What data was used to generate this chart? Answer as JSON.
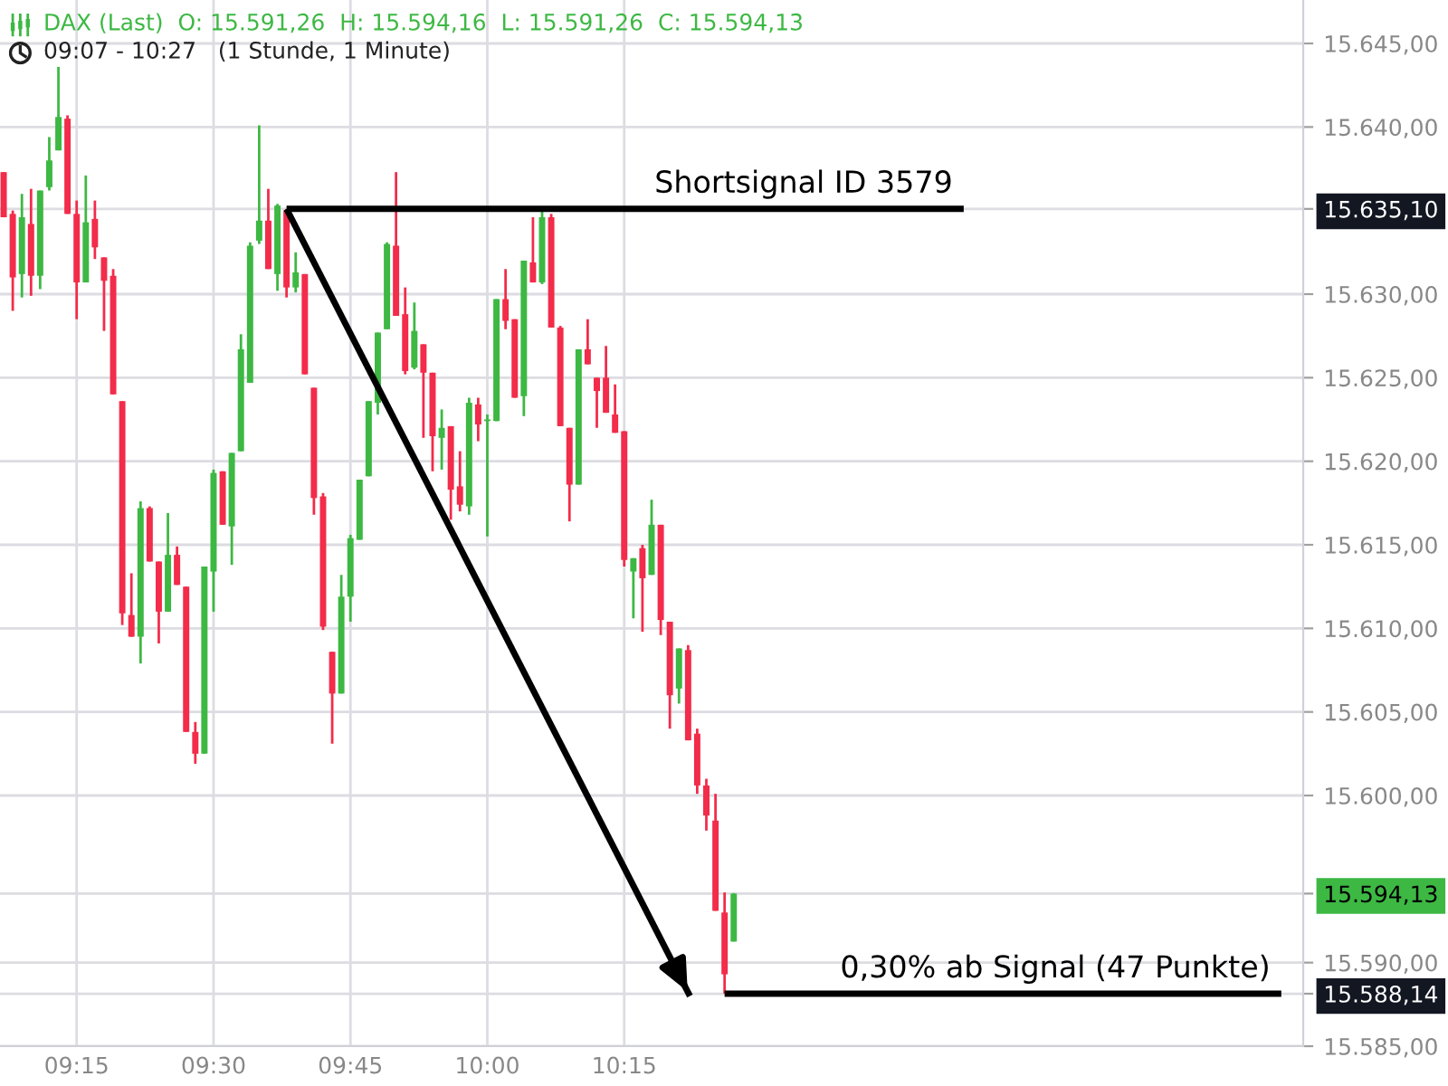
{
  "chart_data": {
    "type": "candlestick",
    "title": "DAX (Last)  O: 15.591,26  H: 15.594,16  L: 15.591,26  C: 15.594,13",
    "subtitle": "09:07 - 10:27   (1 Stunde, 1 Minute)",
    "x": [
      9.1167,
      9.1333,
      9.15,
      9.1667,
      9.1833,
      9.2,
      9.2167,
      9.2333,
      9.25,
      9.2667,
      9.2833,
      9.3,
      9.3167,
      9.3333,
      9.35,
      9.3667,
      9.3833,
      9.4,
      9.4167,
      9.4333,
      9.45,
      9.4667,
      9.4833,
      9.5,
      9.5167,
      9.5333,
      9.55,
      9.5667,
      9.5833,
      9.6,
      9.6167,
      9.6333,
      9.65,
      9.6667,
      9.6833,
      9.7,
      9.7167,
      9.7333,
      9.75,
      9.7667,
      9.7833,
      9.8,
      9.8167,
      9.8333,
      9.85,
      9.8667,
      9.8833,
      9.9,
      9.9167,
      9.9333,
      9.95,
      9.9667,
      9.9833,
      10.0,
      10.0167,
      10.0333,
      10.05,
      10.0667,
      10.0833,
      10.1,
      10.1167,
      10.1333,
      10.15,
      10.1667,
      10.1833,
      10.2,
      10.2167,
      10.2333,
      10.25,
      10.2667,
      10.2833,
      10.3,
      10.3167,
      10.3333,
      10.35,
      10.3667,
      10.3833,
      10.4,
      10.4167,
      10.4333,
      10.45
    ],
    "ohlc": [
      [
        15637.3,
        15637.3,
        15634.6,
        15634.6
      ],
      [
        15634.8,
        15635.0,
        15629.0,
        15631.0
      ],
      [
        15631.2,
        15636.0,
        15629.8,
        15634.6
      ],
      [
        15634.2,
        15636.3,
        15629.9,
        15631.1
      ],
      [
        15631.1,
        15636.2,
        15630.3,
        15636.2
      ],
      [
        15636.4,
        15639.4,
        15636.2,
        15638.0
      ],
      [
        15638.6,
        15643.6,
        15638.6,
        15640.6
      ],
      [
        15640.5,
        15640.7,
        15634.8,
        15634.8
      ],
      [
        15634.8,
        15635.6,
        15628.5,
        15630.7
      ],
      [
        15630.7,
        15637.1,
        15630.7,
        15634.3
      ],
      [
        15634.5,
        15635.6,
        15632.1,
        15632.8
      ],
      [
        15632.2,
        15632.2,
        15627.8,
        15630.8
      ],
      [
        15631.1,
        15631.5,
        15624.0,
        15624.0
      ],
      [
        15623.6,
        15623.6,
        15610.2,
        15610.9
      ],
      [
        15610.8,
        15613.3,
        15609.5,
        15609.5
      ],
      [
        15609.5,
        15617.6,
        15607.9,
        15617.2
      ],
      [
        15617.2,
        15617.3,
        15614.0,
        15614.0
      ],
      [
        15614.0,
        15614.0,
        15609.1,
        15611.0
      ],
      [
        15611.0,
        15616.9,
        15611.0,
        15614.4
      ],
      [
        15614.4,
        15614.9,
        15612.6,
        15612.6
      ],
      [
        15612.5,
        15612.5,
        15603.8,
        15603.8
      ],
      [
        15603.8,
        15604.4,
        15601.9,
        15602.5
      ],
      [
        15602.5,
        15613.7,
        15602.5,
        15613.7
      ],
      [
        15613.4,
        15619.5,
        15611.0,
        15619.3
      ],
      [
        15619.4,
        15619.4,
        15616.2,
        15616.2
      ],
      [
        15616.1,
        15620.5,
        15613.8,
        15620.5
      ],
      [
        15620.6,
        15627.6,
        15620.6,
        15626.7
      ],
      [
        15624.7,
        15633.1,
        15624.7,
        15632.9
      ],
      [
        15633.2,
        15640.1,
        15633.0,
        15634.4
      ],
      [
        15634.4,
        15636.3,
        15631.5,
        15631.5
      ],
      [
        15631.2,
        15635.4,
        15630.2,
        15635.3
      ],
      [
        15635.0,
        15635.1,
        15629.8,
        15630.4
      ],
      [
        15630.4,
        15632.5,
        15630.1,
        15631.3
      ],
      [
        15631.2,
        15631.2,
        15625.2,
        15625.2
      ],
      [
        15624.4,
        15624.4,
        15616.8,
        15617.8
      ],
      [
        15617.9,
        15618.1,
        15609.9,
        15610.1
      ],
      [
        15608.6,
        15608.6,
        15603.1,
        15606.1
      ],
      [
        15606.1,
        15613.2,
        15606.1,
        15611.9
      ],
      [
        15611.9,
        15615.6,
        15610.4,
        15615.4
      ],
      [
        15615.3,
        15618.9,
        15615.3,
        15618.9
      ],
      [
        15619.1,
        15623.6,
        15619.1,
        15623.6
      ],
      [
        15623.5,
        15627.7,
        15622.8,
        15627.7
      ],
      [
        15627.9,
        15633.1,
        15627.9,
        15633.0
      ],
      [
        15632.9,
        15637.3,
        15628.7,
        15628.7
      ],
      [
        15628.8,
        15630.4,
        15625.2,
        15625.4
      ],
      [
        15625.6,
        15629.5,
        15625.5,
        15627.8
      ],
      [
        15627.0,
        15627.0,
        15621.4,
        15625.3
      ],
      [
        15625.3,
        15625.3,
        15619.4,
        15621.5
      ],
      [
        15621.4,
        15623.1,
        15619.5,
        15622.0
      ],
      [
        15622.1,
        15622.1,
        15616.5,
        15618.3
      ],
      [
        15618.5,
        15620.6,
        15617.0,
        15617.4
      ],
      [
        15617.3,
        15623.8,
        15616.8,
        15623.5
      ],
      [
        15623.4,
        15623.8,
        15621.2,
        15622.2
      ],
      [
        15622.4,
        15622.8,
        15615.5,
        15622.5
      ],
      [
        15622.4,
        15629.7,
        15622.4,
        15629.7
      ],
      [
        15629.7,
        15631.5,
        15627.9,
        15628.4
      ],
      [
        15628.5,
        15628.5,
        15623.8,
        15623.8
      ],
      [
        15623.9,
        15632.0,
        15622.7,
        15632.0
      ],
      [
        15631.9,
        15634.6,
        15630.7,
        15630.7
      ],
      [
        15630.7,
        15635.0,
        15630.6,
        15634.6
      ],
      [
        15634.6,
        15634.8,
        15628.0,
        15628.0
      ],
      [
        15628.0,
        15628.1,
        15622.1,
        15622.1
      ],
      [
        15622.0,
        15622.0,
        15616.4,
        15618.6
      ],
      [
        15618.6,
        15626.7,
        15618.6,
        15626.7
      ],
      [
        15626.7,
        15628.5,
        15625.8,
        15625.8
      ],
      [
        15625.0,
        15625.0,
        15622.0,
        15624.2
      ],
      [
        15625.0,
        15626.9,
        15622.9,
        15622.9
      ],
      [
        15622.8,
        15624.6,
        15621.7,
        15621.7
      ],
      [
        15621.8,
        15621.8,
        15613.7,
        15614.1
      ],
      [
        15613.4,
        15614.2,
        15610.6,
        15614.2
      ],
      [
        15614.8,
        15615.0,
        15609.8,
        15613.0
      ],
      [
        15613.2,
        15617.7,
        15613.2,
        15616.2
      ],
      [
        15616.2,
        15616.2,
        15609.6,
        15610.5
      ],
      [
        15610.4,
        15610.4,
        15604.0,
        15606.0
      ],
      [
        15606.4,
        15608.8,
        15605.5,
        15608.8
      ],
      [
        15608.7,
        15609.0,
        15603.3,
        15603.3
      ],
      [
        15603.7,
        15604.0,
        15600.1,
        15600.6
      ],
      [
        15600.6,
        15601.0,
        15597.9,
        15598.8
      ],
      [
        15598.5,
        15600.1,
        15593.1,
        15593.1
      ],
      [
        15593.0,
        15594.2,
        15588.14,
        15589.3
      ],
      [
        15591.26,
        15594.16,
        15591.26,
        15594.13
      ]
    ],
    "colors": [
      "#f22c4a",
      "#f22c4a",
      "#3db843",
      "#f22c4a",
      "#3db843",
      "#3db843",
      "#3db843",
      "#f22c4a",
      "#f22c4a",
      "#3db843",
      "#f22c4a",
      "#f22c4a",
      "#f22c4a",
      "#f22c4a",
      "#f22c4a",
      "#3db843",
      "#f22c4a",
      "#f22c4a",
      "#3db843",
      "#f22c4a",
      "#f22c4a",
      "#f22c4a",
      "#3db843",
      "#3db843",
      "#f22c4a",
      "#3db843",
      "#3db843",
      "#3db843",
      "#3db843",
      "#f22c4a",
      "#3db843",
      "#f22c4a",
      "#3db843",
      "#f22c4a",
      "#f22c4a",
      "#f22c4a",
      "#f22c4a",
      "#3db843",
      "#3db843",
      "#3db843",
      "#3db843",
      "#3db843",
      "#3db843",
      "#f22c4a",
      "#f22c4a",
      "#3db843",
      "#f22c4a",
      "#f22c4a",
      "#3db843",
      "#f22c4a",
      "#f22c4a",
      "#3db843",
      "#f22c4a",
      "#3db843",
      "#3db843",
      "#f22c4a",
      "#f22c4a",
      "#3db843",
      "#f22c4a",
      "#3db843",
      "#f22c4a",
      "#f22c4a",
      "#f22c4a",
      "#3db843",
      "#f22c4a",
      "#f22c4a",
      "#f22c4a",
      "#f22c4a",
      "#f22c4a",
      "#3db843",
      "#f22c4a",
      "#3db843",
      "#f22c4a",
      "#f22c4a",
      "#3db843",
      "#f22c4a",
      "#f22c4a",
      "#f22c4a",
      "#f22c4a",
      "#f22c4a",
      "#3db843"
    ],
    "series": [
      {
        "type": "line",
        "x": [
          9.6333,
          10.87
        ],
        "values": [
          15635.1,
          15635.1
        ],
        "color": "#000000"
      },
      {
        "type": "line",
        "x": [
          10.4333,
          11.45
        ],
        "values": [
          15588.14,
          15588.14
        ],
        "color": "#000000"
      },
      {
        "type": "line",
        "x": [
          9.6333,
          10.37
        ],
        "values": [
          15635.1,
          15588.0
        ],
        "color": "#000000"
      }
    ],
    "annotations": [
      {
        "text": "Shortsignal ID 3579",
        "x": 10.85,
        "y": 15635.1
      },
      {
        "text": "0,30% ab Signal (47 Punkte)",
        "x": 11.43,
        "y": 15588.14
      }
    ],
    "xlim": [
      9.11,
      11.49
    ],
    "ylim": [
      15585.0,
      15647.6
    ],
    "xticks": [
      {
        "value": 9.25,
        "label": "09:15"
      },
      {
        "value": 9.5,
        "label": "09:30"
      },
      {
        "value": 9.75,
        "label": "09:45"
      },
      {
        "value": 10.0,
        "label": "10:00"
      },
      {
        "value": 10.25,
        "label": "10:15"
      }
    ],
    "yticks": [
      {
        "value": 15585,
        "label": "15.585,00"
      },
      {
        "value": 15588.14,
        "label": "15.588,14"
      },
      {
        "value": 15590,
        "label": "15.590,00"
      },
      {
        "value": 15594.13,
        "label": "15.594,13"
      },
      {
        "value": 15600,
        "label": "15.600,00"
      },
      {
        "value": 15605,
        "label": "15.605,00"
      },
      {
        "value": 15610,
        "label": "15.610,00"
      },
      {
        "value": 15615,
        "label": "15.615,00"
      },
      {
        "value": 15620,
        "label": "15.620,00"
      },
      {
        "value": 15625,
        "label": "15.625,00"
      },
      {
        "value": 15630,
        "label": "15.630,00"
      },
      {
        "value": 15635.1,
        "label": "15.635,10"
      },
      {
        "value": 15640,
        "label": "15.640,00"
      },
      {
        "value": 15645,
        "label": "15.645,00"
      }
    ],
    "grid": true
  }
}
